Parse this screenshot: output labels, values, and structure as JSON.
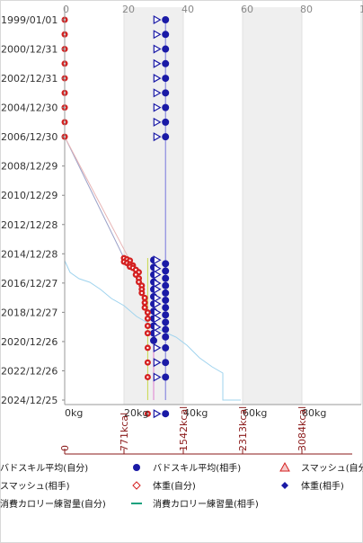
{
  "chart_data": {
    "type": "scatter",
    "x_top_ticks": [
      "0",
      "20",
      "40",
      "60",
      "80",
      "100"
    ],
    "x_bottom_ticks": [
      "0kg",
      "20kg",
      "40kg",
      "60kg",
      "80kg"
    ],
    "kcal_ticks": [
      "0",
      "771kcal",
      "1542kcal",
      "2313kcal",
      "3084kcal"
    ],
    "y_ticks": [
      "1999/01/01",
      "2000/12/31",
      "2002/12/31",
      "2004/12/30",
      "2006/12/30",
      "2008/12/29",
      "2010/12/29",
      "2012/12/28",
      "2014/12/28",
      "2016/12/27",
      "2018/12/27",
      "2020/12/26",
      "2022/12/26",
      "2024/12/25"
    ],
    "y_range": [
      "1999/01/01",
      "2025/12/31"
    ],
    "x_range": [
      0,
      100
    ],
    "shaded_bands": [
      [
        20,
        40
      ],
      [
        60,
        80
      ]
    ],
    "legend": [
      {
        "label": "バドスキル平均(自分)",
        "marker": "none",
        "color": "#000000"
      },
      {
        "label": "バドスキル平均(相手)",
        "marker": "circle",
        "color": "#1a1aa6"
      },
      {
        "label": "スマッシュ(自分)",
        "marker": "triangle-up",
        "color": "#d42020"
      },
      {
        "label": "スマッシュ(相手)",
        "marker": "none",
        "color": "#000000"
      },
      {
        "label": "体重(自分)",
        "marker": "diamond-open",
        "color": "#d42020"
      },
      {
        "label": "体重(相手)",
        "marker": "diamond",
        "color": "#1a1aa6"
      },
      {
        "label": "消費カロリー練習量(自分)",
        "marker": "none",
        "color": "#000000"
      },
      {
        "label": "消費カロリー練習量(相手)",
        "marker": "line",
        "color": "#17a17e"
      }
    ],
    "series": [
      {
        "name": "バドスキル平均(相手)",
        "color": "#1a1aa6",
        "points": [
          [
            "1999/01/01",
            34
          ],
          [
            "2000/01/01",
            34
          ],
          [
            "2000/12/31",
            34
          ],
          [
            "2001/12/31",
            34
          ],
          [
            "2002/12/31",
            34
          ],
          [
            "2003/12/31",
            34
          ],
          [
            "2004/12/30",
            34
          ],
          [
            "2005/12/30",
            34
          ],
          [
            "2006/12/30",
            34
          ],
          [
            "2015/06/01",
            30
          ],
          [
            "2015/09/01",
            34
          ],
          [
            "2015/12/01",
            30
          ],
          [
            "2016/03/01",
            34
          ],
          [
            "2016/06/01",
            30
          ],
          [
            "2016/09/01",
            34
          ],
          [
            "2016/12/01",
            30
          ],
          [
            "2017/03/01",
            34
          ],
          [
            "2017/06/01",
            30
          ],
          [
            "2017/09/01",
            34
          ],
          [
            "2017/12/01",
            30
          ],
          [
            "2018/03/01",
            34
          ],
          [
            "2018/06/01",
            30
          ],
          [
            "2018/09/01",
            34
          ],
          [
            "2018/12/01",
            30
          ],
          [
            "2019/03/01",
            34
          ],
          [
            "2019/06/01",
            30
          ],
          [
            "2019/09/01",
            34
          ],
          [
            "2019/12/01",
            30
          ],
          [
            "2020/03/01",
            34
          ],
          [
            "2020/06/01",
            30
          ],
          [
            "2020/09/01",
            34
          ],
          [
            "2020/12/01",
            30
          ],
          [
            "2021/06/01",
            34
          ],
          [
            "2022/06/01",
            34
          ],
          [
            "2023/06/01",
            34
          ],
          [
            "2025/12/01",
            34
          ]
        ]
      },
      {
        "name": "スマッシュ(相手)",
        "color": "#1a1aa6",
        "points": [
          [
            "1999/01/01",
            31
          ],
          [
            "2000/01/01",
            31
          ],
          [
            "2000/12/31",
            31
          ],
          [
            "2001/12/31",
            31
          ],
          [
            "2002/12/31",
            31
          ],
          [
            "2003/12/31",
            31
          ],
          [
            "2004/12/30",
            31
          ],
          [
            "2005/12/30",
            31
          ],
          [
            "2006/12/30",
            31
          ],
          [
            "2015/06/01",
            31
          ],
          [
            "2016/01/01",
            31
          ],
          [
            "2016/06/01",
            31
          ],
          [
            "2017/01/01",
            31
          ],
          [
            "2017/06/01",
            31
          ],
          [
            "2018/01/01",
            31
          ],
          [
            "2018/06/01",
            31
          ],
          [
            "2019/01/01",
            31
          ],
          [
            "2019/06/01",
            31
          ],
          [
            "2020/01/01",
            31
          ],
          [
            "2020/06/01",
            31
          ],
          [
            "2021/06/01",
            31
          ],
          [
            "2022/06/01",
            31
          ],
          [
            "2023/06/01",
            31
          ],
          [
            "2025/12/01",
            31
          ]
        ]
      },
      {
        "name": "体重(自分)",
        "color": "#d42020",
        "points": [
          [
            "1999/01/01",
            0
          ],
          [
            "2000/01/01",
            0
          ],
          [
            "2000/12/31",
            0
          ],
          [
            "2001/12/31",
            0
          ],
          [
            "2002/12/31",
            0
          ],
          [
            "2003/12/31",
            0
          ],
          [
            "2004/12/30",
            0
          ],
          [
            "2005/12/30",
            0
          ],
          [
            "2006/12/30",
            0
          ],
          [
            "2015/04/15",
            20
          ],
          [
            "2015/05/15",
            21
          ],
          [
            "2015/06/15",
            22
          ],
          [
            "2015/07/15",
            20
          ],
          [
            "2015/08/15",
            21
          ],
          [
            "2015/09/15",
            22
          ],
          [
            "2015/10/15",
            23
          ],
          [
            "2015/11/15",
            22
          ],
          [
            "2015/12/15",
            23
          ],
          [
            "2016/02/01",
            24
          ],
          [
            "2016/04/01",
            25
          ],
          [
            "2016/06/01",
            24
          ],
          [
            "2016/09/01",
            25
          ],
          [
            "2016/12/01",
            25
          ],
          [
            "2017/03/01",
            26
          ],
          [
            "2017/06/01",
            26
          ],
          [
            "2017/09/01",
            26
          ],
          [
            "2018/01/01",
            27
          ],
          [
            "2018/05/01",
            27
          ],
          [
            "2018/09/01",
            27
          ],
          [
            "2019/01/01",
            28
          ],
          [
            "2019/06/01",
            28
          ],
          [
            "2019/12/01",
            28
          ],
          [
            "2020/06/01",
            28
          ],
          [
            "2021/06/01",
            28
          ],
          [
            "2022/06/01",
            28
          ],
          [
            "2023/06/01",
            28
          ],
          [
            "2025/12/01",
            28
          ]
        ]
      }
    ]
  }
}
